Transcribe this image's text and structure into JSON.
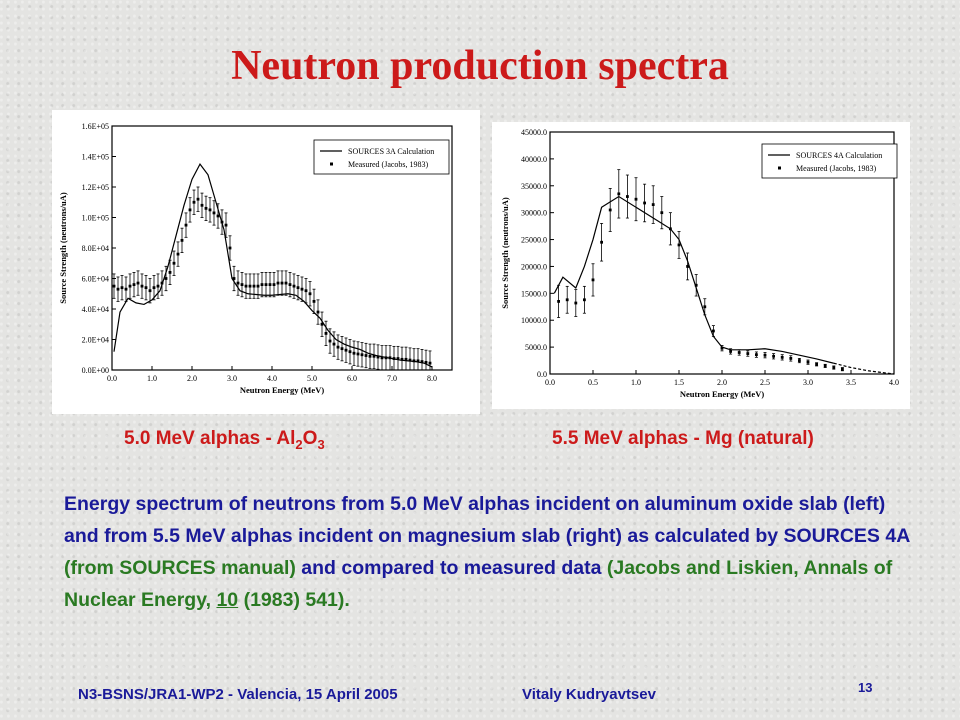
{
  "title": "Neutron production spectra",
  "captions": {
    "left": {
      "prefix": "5.0 MeV alphas - Al",
      "sub1": "2",
      "mid": "O",
      "sub2": "3"
    },
    "right": "5.5 MeV alphas - Mg (natural)"
  },
  "description": {
    "p1": "Energy spectrum of neutrons from 5.0 MeV alphas incident on aluminum oxide slab (left) and from 5.5 MeV alphas incident on magnesium slab (right) as calculated by SOURCES 4A ",
    "p2": "(from SOURCES manual)",
    "p3": " and compared to measured data ",
    "p4": "(Jacobs and Liskien, Annals of Nuclear Energy, ",
    "p5": "10",
    "p6": " (1983) 541)."
  },
  "footer": {
    "left": "N3-BSNS/JRA1-WP2 - Valencia, 15 April 2005",
    "center": "Vitaly Kudryavtsev",
    "page": "13"
  },
  "colors": {
    "title": "#cc1a1a",
    "text": "#1a1a99",
    "green": "#2a7a22"
  },
  "chart_data": [
    {
      "type": "line",
      "xlabel": "Neutron Energy (MeV)",
      "ylabel": "Source Strength (neutrons/uA)",
      "xlim": [
        0,
        8.5
      ],
      "ylim": [
        0,
        160000
      ],
      "xticks": [
        "0.0",
        "1.0",
        "2.0",
        "3.0",
        "4.0",
        "5.0",
        "6.0",
        "7.0",
        "8.0"
      ],
      "yticks": [
        "0.0E+00",
        "2.0E+04",
        "4.0E+04",
        "6.0E+04",
        "8.0E+04",
        "1.0E+05",
        "1.2E+05",
        "1.4E+05",
        "1.6E+05"
      ],
      "legend": {
        "line": "SOURCES 3A Calculation",
        "points": "Measured (Jacobs, 1983)"
      },
      "series": [
        {
          "name": "SOURCES 3A Calculation",
          "kind": "line",
          "x": [
            0.05,
            0.2,
            0.4,
            0.6,
            0.8,
            1.0,
            1.2,
            1.4,
            1.6,
            1.8,
            2.0,
            2.2,
            2.4,
            2.6,
            2.8,
            3.0,
            3.2,
            3.4,
            3.6,
            3.8,
            4.0,
            4.2,
            4.4,
            4.6,
            4.8,
            5.0,
            5.2,
            5.4,
            5.6,
            5.8,
            6.0,
            6.2,
            6.4,
            6.6,
            6.8,
            7.0,
            7.2,
            7.4,
            7.6,
            7.8,
            8.0
          ],
          "y": [
            12000,
            38000,
            47000,
            44000,
            43000,
            46000,
            52000,
            68000,
            88000,
            108000,
            125000,
            135000,
            128000,
            110000,
            92000,
            60000,
            52000,
            50000,
            49500,
            49000,
            49000,
            49500,
            50000,
            49000,
            45000,
            39000,
            34000,
            26000,
            20000,
            17000,
            15000,
            13500,
            11000,
            9500,
            8500,
            7500,
            6500,
            6000,
            5500,
            4500,
            2000
          ]
        },
        {
          "name": "Measured (Jacobs, 1983)",
          "kind": "points",
          "x": [
            0.05,
            0.15,
            0.25,
            0.35,
            0.45,
            0.55,
            0.65,
            0.75,
            0.85,
            0.95,
            1.05,
            1.15,
            1.25,
            1.35,
            1.45,
            1.55,
            1.65,
            1.75,
            1.85,
            1.95,
            2.05,
            2.15,
            2.25,
            2.35,
            2.45,
            2.55,
            2.65,
            2.75,
            2.85,
            2.95,
            3.05,
            3.15,
            3.25,
            3.35,
            3.45,
            3.55,
            3.65,
            3.75,
            3.85,
            3.95,
            4.05,
            4.15,
            4.25,
            4.35,
            4.45,
            4.55,
            4.65,
            4.75,
            4.85,
            4.95,
            5.05,
            5.15,
            5.25,
            5.35,
            5.45,
            5.55,
            5.65,
            5.75,
            5.85,
            5.95,
            6.05,
            6.15,
            6.25,
            6.35,
            6.45,
            6.55,
            6.65,
            6.75,
            6.85,
            6.95,
            7.05,
            7.15,
            7.25,
            7.35,
            7.45,
            7.55,
            7.65,
            7.75,
            7.85,
            7.95
          ],
          "y": [
            55000,
            53000,
            54000,
            53000,
            55000,
            56000,
            57000,
            55000,
            54000,
            52000,
            54000,
            55000,
            57000,
            60000,
            64000,
            70000,
            76000,
            85000,
            95000,
            105000,
            110000,
            112000,
            108000,
            106000,
            105000,
            103000,
            101000,
            97000,
            95000,
            80000,
            60000,
            57000,
            56000,
            55000,
            55000,
            55000,
            55000,
            56000,
            56000,
            56000,
            56000,
            57000,
            57000,
            57000,
            56000,
            55000,
            54000,
            53000,
            52000,
            50000,
            45000,
            38000,
            30000,
            24000,
            19000,
            17000,
            15000,
            14000,
            13000,
            12000,
            11000,
            10500,
            10000,
            9500,
            9000,
            9000,
            8500,
            8000,
            8000,
            8000,
            7500,
            7500,
            7000,
            7000,
            6500,
            6000,
            6000,
            5500,
            5000,
            4500
          ],
          "err": 8000
        }
      ]
    },
    {
      "type": "line",
      "xlabel": "Neutron Energy (MeV)",
      "ylabel": "Source Strength (neutrons/uA)",
      "xlim": [
        0,
        4.0
      ],
      "ylim": [
        0,
        45000
      ],
      "xticks": [
        "0.0",
        "0.5",
        "1.0",
        "1.5",
        "2.0",
        "2.5",
        "3.0",
        "3.5",
        "4.0"
      ],
      "yticks": [
        "0.0",
        "5000.0",
        "10000.0",
        "15000.0",
        "20000.0",
        "25000.0",
        "30000.0",
        "35000.0",
        "40000.0",
        "45000.0"
      ],
      "legend": {
        "line": "SOURCES 4A Calculation",
        "points": "Measured (Jacobs, 1983)"
      },
      "series": [
        {
          "name": "SOURCES 4A Calculation",
          "kind": "line",
          "x": [
            0.05,
            0.15,
            0.3,
            0.4,
            0.5,
            0.6,
            0.7,
            0.8,
            1.0,
            1.2,
            1.4,
            1.5,
            1.6,
            1.7,
            1.8,
            1.9,
            2.0,
            2.1,
            2.3,
            2.5,
            2.7,
            2.9,
            3.1,
            3.3,
            3.5,
            3.7,
            3.9,
            4.0
          ],
          "y": [
            15000,
            18000,
            16000,
            20000,
            25000,
            31000,
            32000,
            33000,
            31000,
            29000,
            27000,
            25000,
            21000,
            16000,
            11000,
            7000,
            5000,
            4500,
            4500,
            4700,
            4200,
            3500,
            2800,
            2000,
            1200,
            600,
            200,
            0
          ],
          "dashed_from": 3.3
        },
        {
          "name": "Measured (Jacobs, 1983)",
          "kind": "points",
          "x": [
            0.1,
            0.2,
            0.3,
            0.4,
            0.5,
            0.6,
            0.7,
            0.8,
            0.9,
            1.0,
            1.1,
            1.2,
            1.3,
            1.4,
            1.5,
            1.6,
            1.7,
            1.8,
            1.9,
            2.0,
            2.1,
            2.2,
            2.3,
            2.4,
            2.5,
            2.6,
            2.7,
            2.8,
            2.9,
            3.0,
            3.1,
            3.2,
            3.3,
            3.4
          ],
          "y": [
            13500,
            13800,
            13200,
            13800,
            17500,
            24500,
            30500,
            33500,
            33000,
            32500,
            31800,
            31500,
            30000,
            27000,
            24000,
            20000,
            16500,
            12500,
            8000,
            4800,
            4200,
            4000,
            3800,
            3600,
            3500,
            3300,
            3100,
            2900,
            2500,
            2200,
            1800,
            1500,
            1200,
            900
          ],
          "err": [
            3000,
            2500,
            2500,
            2500,
            3000,
            3500,
            4000,
            4500,
            4000,
            4000,
            3500,
            3500,
            3000,
            3000,
            2500,
            2500,
            2000,
            1500,
            1000,
            500,
            500,
            500,
            500,
            500,
            500,
            500,
            500,
            500,
            400,
            400,
            300,
            300,
            300,
            300
          ]
        }
      ]
    }
  ]
}
